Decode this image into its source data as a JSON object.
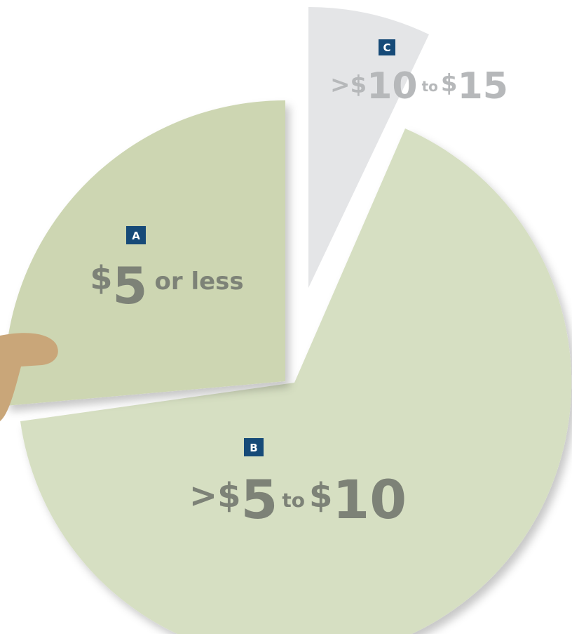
{
  "slices": [
    {
      "letter": "A",
      "parts": [
        "$",
        "5",
        "or less"
      ]
    },
    {
      "letter": "B",
      "parts": [
        ">$",
        "5",
        "to",
        "$",
        "10"
      ]
    },
    {
      "letter": "C",
      "parts": [
        ">$",
        "10",
        "to",
        "$",
        "15"
      ]
    }
  ]
}
